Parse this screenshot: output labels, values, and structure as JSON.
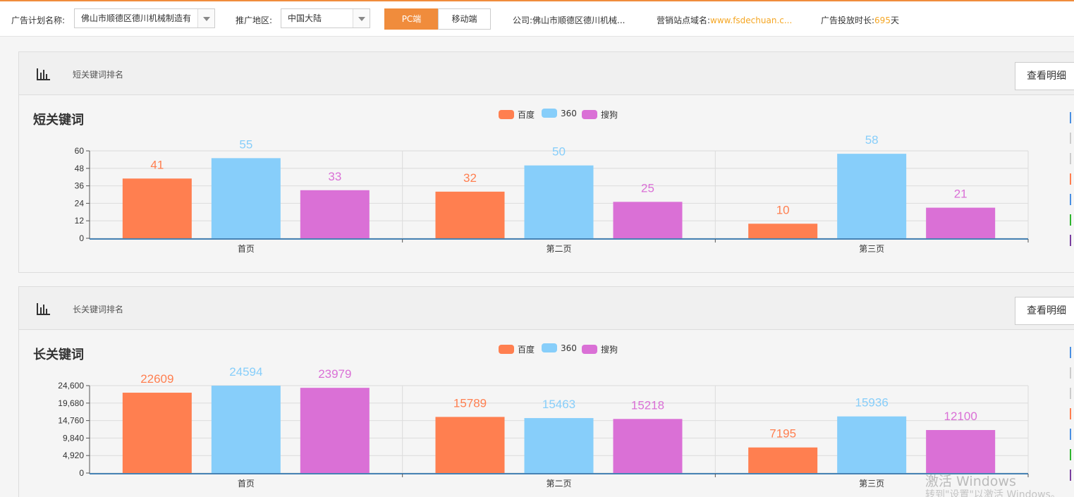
{
  "topbar": {
    "plan_label": "广告计划名称:",
    "plan_value": "佛山市顺德区德川机械制造有",
    "region_label": "推广地区:",
    "region_value": "中国大陆",
    "tab_pc": "PC端",
    "tab_mobile": "移动端",
    "company_label": "公司:",
    "company_value": "佛山市顺德区德川机械...",
    "domain_label": "营销站点域名:",
    "domain_value": "www.fsdechuan.c...",
    "duration_label": "广告投放时长:",
    "duration_value": "695",
    "duration_unit": "天"
  },
  "panels": [
    {
      "title": "短关键词排名",
      "detail_button": "查看明细",
      "chart_title": "短关键词"
    },
    {
      "title": "长关键词排名",
      "detail_button": "查看明细",
      "chart_title": "长关键词"
    }
  ],
  "colors": {
    "baidu": "#ff7f50",
    "s360": "#87cefa",
    "sogou": "#da70d6",
    "accent": "#f08c3c"
  },
  "legend": [
    "百度",
    "360",
    "搜狗"
  ],
  "watermark": {
    "line1": "激活 Windows",
    "line2": "转到\"设置\"以激活 Windows。"
  },
  "chart_data": [
    {
      "type": "bar",
      "title": "短关键词",
      "categories": [
        "首页",
        "第二页",
        "第三页"
      ],
      "series": [
        {
          "name": "百度",
          "values": [
            41,
            32,
            10
          ]
        },
        {
          "name": "360",
          "values": [
            55,
            50,
            58
          ]
        },
        {
          "name": "搜狗",
          "values": [
            33,
            25,
            21
          ]
        }
      ],
      "ylim": [
        0,
        60
      ],
      "yticks": [
        0,
        12,
        24,
        36,
        48,
        60
      ],
      "ytick_labels": [
        "0",
        "12",
        "24",
        "36",
        "48",
        "60"
      ],
      "grid": true,
      "legend_position": "top-center"
    },
    {
      "type": "bar",
      "title": "长关键词",
      "categories": [
        "首页",
        "第二页",
        "第三页"
      ],
      "series": [
        {
          "name": "百度",
          "values": [
            22609,
            15789,
            7195
          ]
        },
        {
          "name": "360",
          "values": [
            24594,
            15463,
            15936
          ]
        },
        {
          "name": "搜狗",
          "values": [
            23979,
            15218,
            12100
          ]
        }
      ],
      "ylim": [
        0,
        24600
      ],
      "yticks": [
        0,
        4920,
        9840,
        14760,
        19680,
        24600
      ],
      "ytick_labels": [
        "0",
        "4,920",
        "9,840",
        "14,760",
        "19,680",
        "24,600"
      ],
      "grid": true,
      "legend_position": "top-center"
    }
  ]
}
